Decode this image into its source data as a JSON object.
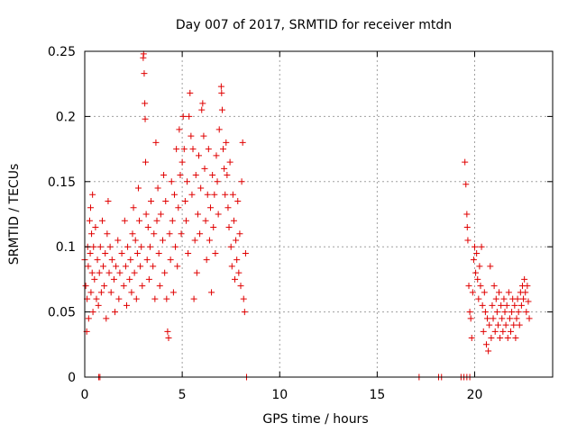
{
  "chart_data": {
    "type": "scatter",
    "title": "Day 007 of 2017, SRMTID for receiver mtdn",
    "xlabel": "GPS time / hours",
    "ylabel": "SRMTID / TECUs",
    "xlim": [
      0,
      24
    ],
    "ylim": [
      0,
      0.25
    ],
    "xticks": [
      0,
      5,
      10,
      15,
      20
    ],
    "xtick_labels": [
      "0",
      "5",
      "10",
      "15",
      "20"
    ],
    "yticks": [
      0,
      0.05,
      0.1,
      0.15,
      0.2,
      0.25
    ],
    "ytick_labels": [
      "0",
      "0.05",
      "0.1",
      "0.15",
      "0.2",
      "0.25"
    ],
    "grid": true,
    "marker": "plus",
    "color": "#e00000",
    "series": [
      {
        "name": "SRMTID",
        "points": [
          [
            0.0,
            0.09
          ],
          [
            0.05,
            0.07
          ],
          [
            0.1,
            0.035
          ],
          [
            0.12,
            0.06
          ],
          [
            0.15,
            0.1
          ],
          [
            0.18,
            0.085
          ],
          [
            0.2,
            0.045
          ],
          [
            0.25,
            0.12
          ],
          [
            0.28,
            0.095
          ],
          [
            0.3,
            0.13
          ],
          [
            0.32,
            0.065
          ],
          [
            0.35,
            0.11
          ],
          [
            0.38,
            0.08
          ],
          [
            0.4,
            0.14
          ],
          [
            0.42,
            0.05
          ],
          [
            0.45,
            0.1
          ],
          [
            0.5,
            0.075
          ],
          [
            0.55,
            0.115
          ],
          [
            0.6,
            0.06
          ],
          [
            0.65,
            0.09
          ],
          [
            0.7,
            0.055
          ],
          [
            0.75,
            0.08
          ],
          [
            0.8,
            0.1
          ],
          [
            0.85,
            0.065
          ],
          [
            0.9,
            0.12
          ],
          [
            0.95,
            0.085
          ],
          [
            1.0,
            0.07
          ],
          [
            1.05,
            0.095
          ],
          [
            1.1,
            0.045
          ],
          [
            1.15,
            0.11
          ],
          [
            1.2,
            0.135
          ],
          [
            1.25,
            0.08
          ],
          [
            1.3,
            0.1
          ],
          [
            1.35,
            0.065
          ],
          [
            1.4,
            0.09
          ],
          [
            1.5,
            0.075
          ],
          [
            1.55,
            0.05
          ],
          [
            1.6,
            0.085
          ],
          [
            1.7,
            0.105
          ],
          [
            1.75,
            0.06
          ],
          [
            1.8,
            0.08
          ],
          [
            1.9,
            0.095
          ],
          [
            2.0,
            0.07
          ],
          [
            2.05,
            0.12
          ],
          [
            2.1,
            0.085
          ],
          [
            2.15,
            0.055
          ],
          [
            2.2,
            0.1
          ],
          [
            2.3,
            0.075
          ],
          [
            2.35,
            0.09
          ],
          [
            2.4,
            0.065
          ],
          [
            2.45,
            0.11
          ],
          [
            2.5,
            0.13
          ],
          [
            2.55,
            0.08
          ],
          [
            2.6,
            0.105
          ],
          [
            2.65,
            0.06
          ],
          [
            2.7,
            0.095
          ],
          [
            2.75,
            0.145
          ],
          [
            2.8,
            0.12
          ],
          [
            2.85,
            0.085
          ],
          [
            2.9,
            0.1
          ],
          [
            2.95,
            0.07
          ],
          [
            3.0,
            0.245
          ],
          [
            3.02,
            0.248
          ],
          [
            3.05,
            0.233
          ],
          [
            3.08,
            0.21
          ],
          [
            3.1,
            0.198
          ],
          [
            3.12,
            0.165
          ],
          [
            3.15,
            0.125
          ],
          [
            3.2,
            0.09
          ],
          [
            3.25,
            0.115
          ],
          [
            3.3,
            0.075
          ],
          [
            3.35,
            0.1
          ],
          [
            3.4,
            0.135
          ],
          [
            3.5,
            0.085
          ],
          [
            3.55,
            0.11
          ],
          [
            3.6,
            0.06
          ],
          [
            3.65,
            0.18
          ],
          [
            3.7,
            0.12
          ],
          [
            3.75,
            0.145
          ],
          [
            3.8,
            0.095
          ],
          [
            3.85,
            0.07
          ],
          [
            3.9,
            0.125
          ],
          [
            4.0,
            0.105
          ],
          [
            4.05,
            0.155
          ],
          [
            4.1,
            0.08
          ],
          [
            4.15,
            0.135
          ],
          [
            4.2,
            0.06
          ],
          [
            4.25,
            0.035
          ],
          [
            4.3,
            0.03
          ],
          [
            4.35,
            0.11
          ],
          [
            4.4,
            0.09
          ],
          [
            4.45,
            0.15
          ],
          [
            4.5,
            0.12
          ],
          [
            4.55,
            0.065
          ],
          [
            4.6,
            0.14
          ],
          [
            4.65,
            0.1
          ],
          [
            4.7,
            0.175
          ],
          [
            4.75,
            0.085
          ],
          [
            4.8,
            0.13
          ],
          [
            4.85,
            0.19
          ],
          [
            4.9,
            0.155
          ],
          [
            4.95,
            0.11
          ],
          [
            5.0,
            0.165
          ],
          [
            5.05,
            0.2
          ],
          [
            5.1,
            0.175
          ],
          [
            5.15,
            0.135
          ],
          [
            5.2,
            0.12
          ],
          [
            5.25,
            0.15
          ],
          [
            5.3,
            0.095
          ],
          [
            5.35,
            0.2
          ],
          [
            5.4,
            0.218
          ],
          [
            5.45,
            0.185
          ],
          [
            5.5,
            0.14
          ],
          [
            5.55,
            0.175
          ],
          [
            5.6,
            0.06
          ],
          [
            5.65,
            0.105
          ],
          [
            5.7,
            0.155
          ],
          [
            5.75,
            0.08
          ],
          [
            5.8,
            0.125
          ],
          [
            5.85,
            0.17
          ],
          [
            5.9,
            0.11
          ],
          [
            5.95,
            0.145
          ],
          [
            6.0,
            0.205
          ],
          [
            6.05,
            0.21
          ],
          [
            6.1,
            0.185
          ],
          [
            6.15,
            0.16
          ],
          [
            6.2,
            0.12
          ],
          [
            6.25,
            0.09
          ],
          [
            6.3,
            0.14
          ],
          [
            6.35,
            0.175
          ],
          [
            6.4,
            0.105
          ],
          [
            6.45,
            0.13
          ],
          [
            6.5,
            0.065
          ],
          [
            6.55,
            0.155
          ],
          [
            6.6,
            0.115
          ],
          [
            6.65,
            0.14
          ],
          [
            6.7,
            0.095
          ],
          [
            6.75,
            0.17
          ],
          [
            6.8,
            0.15
          ],
          [
            6.85,
            0.125
          ],
          [
            6.9,
            0.19
          ],
          [
            7.0,
            0.223
          ],
          [
            7.02,
            0.218
          ],
          [
            7.05,
            0.205
          ],
          [
            7.1,
            0.175
          ],
          [
            7.15,
            0.16
          ],
          [
            7.2,
            0.14
          ],
          [
            7.25,
            0.18
          ],
          [
            7.3,
            0.155
          ],
          [
            7.35,
            0.13
          ],
          [
            7.4,
            0.115
          ],
          [
            7.45,
            0.165
          ],
          [
            7.5,
            0.1
          ],
          [
            7.55,
            0.085
          ],
          [
            7.6,
            0.14
          ],
          [
            7.65,
            0.12
          ],
          [
            7.7,
            0.075
          ],
          [
            7.75,
            0.105
          ],
          [
            7.8,
            0.09
          ],
          [
            7.85,
            0.135
          ],
          [
            7.9,
            0.08
          ],
          [
            7.95,
            0.11
          ],
          [
            8.0,
            0.07
          ],
          [
            8.05,
            0.15
          ],
          [
            8.1,
            0.18
          ],
          [
            8.15,
            0.06
          ],
          [
            8.2,
            0.05
          ],
          [
            8.25,
            0.095
          ],
          [
            0.72,
            0.0
          ],
          [
            0.78,
            0.0
          ],
          [
            8.3,
            0.0
          ],
          [
            17.15,
            0.0
          ],
          [
            18.15,
            0.0
          ],
          [
            18.3,
            0.0
          ],
          [
            19.3,
            0.0
          ],
          [
            19.45,
            0.0
          ],
          [
            19.6,
            0.0
          ],
          [
            19.75,
            0.0
          ],
          [
            19.5,
            0.165
          ],
          [
            19.55,
            0.148
          ],
          [
            19.6,
            0.125
          ],
          [
            19.62,
            0.115
          ],
          [
            19.65,
            0.105
          ],
          [
            19.7,
            0.07
          ],
          [
            19.75,
            0.05
          ],
          [
            19.8,
            0.045
          ],
          [
            19.85,
            0.03
          ],
          [
            19.9,
            0.065
          ],
          [
            19.95,
            0.09
          ],
          [
            20.0,
            0.1
          ],
          [
            20.05,
            0.08
          ],
          [
            20.1,
            0.095
          ],
          [
            20.15,
            0.075
          ],
          [
            20.2,
            0.06
          ],
          [
            20.25,
            0.085
          ],
          [
            20.3,
            0.07
          ],
          [
            20.35,
            0.1
          ],
          [
            20.4,
            0.055
          ],
          [
            20.45,
            0.035
          ],
          [
            20.5,
            0.065
          ],
          [
            20.55,
            0.05
          ],
          [
            20.6,
            0.025
          ],
          [
            20.65,
            0.045
          ],
          [
            20.7,
            0.02
          ],
          [
            20.75,
            0.04
          ],
          [
            20.8,
            0.085
          ],
          [
            20.85,
            0.03
          ],
          [
            20.9,
            0.055
          ],
          [
            20.95,
            0.045
          ],
          [
            21.0,
            0.07
          ],
          [
            21.05,
            0.035
          ],
          [
            21.1,
            0.06
          ],
          [
            21.15,
            0.05
          ],
          [
            21.2,
            0.04
          ],
          [
            21.25,
            0.065
          ],
          [
            21.3,
            0.03
          ],
          [
            21.35,
            0.055
          ],
          [
            21.4,
            0.045
          ],
          [
            21.45,
            0.035
          ],
          [
            21.5,
            0.06
          ],
          [
            21.55,
            0.05
          ],
          [
            21.6,
            0.04
          ],
          [
            21.65,
            0.055
          ],
          [
            21.7,
            0.03
          ],
          [
            21.75,
            0.065
          ],
          [
            21.8,
            0.045
          ],
          [
            21.85,
            0.035
          ],
          [
            21.9,
            0.05
          ],
          [
            21.95,
            0.06
          ],
          [
            22.0,
            0.04
          ],
          [
            22.05,
            0.055
          ],
          [
            22.1,
            0.03
          ],
          [
            22.15,
            0.045
          ],
          [
            22.2,
            0.06
          ],
          [
            22.25,
            0.05
          ],
          [
            22.3,
            0.04
          ],
          [
            22.35,
            0.065
          ],
          [
            22.4,
            0.055
          ],
          [
            22.45,
            0.07
          ],
          [
            22.5,
            0.06
          ],
          [
            22.55,
            0.075
          ],
          [
            22.6,
            0.065
          ],
          [
            22.65,
            0.05
          ],
          [
            22.7,
            0.07
          ],
          [
            22.75,
            0.058
          ],
          [
            22.8,
            0.045
          ]
        ]
      }
    ]
  }
}
